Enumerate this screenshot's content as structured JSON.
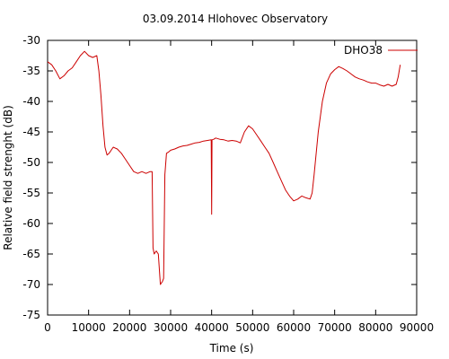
{
  "chart_data": {
    "type": "line",
    "title": "03.09.2014 Hlohovec Observatory",
    "xlabel": "Time (s)",
    "ylabel": "Relative field strenght (dB)",
    "xlim": [
      0,
      90000
    ],
    "ylim": [
      -75,
      -30
    ],
    "x_ticks": [
      0,
      10000,
      20000,
      30000,
      40000,
      50000,
      60000,
      70000,
      80000,
      90000
    ],
    "y_ticks": [
      -30,
      -35,
      -40,
      -45,
      -50,
      -55,
      -60,
      -65,
      -70,
      -75
    ],
    "grid": false,
    "legend_position": "top-right",
    "series": [
      {
        "name": "DHO38",
        "color": "#cc0000",
        "x": [
          0,
          1000,
          2000,
          3000,
          4000,
          5000,
          6000,
          7000,
          8000,
          9000,
          10000,
          11000,
          12000,
          12500,
          13000,
          13500,
          14000,
          14500,
          15000,
          15500,
          16000,
          17000,
          18000,
          19000,
          20000,
          21000,
          22000,
          23000,
          24000,
          25000,
          25500,
          25700,
          26000,
          26500,
          27000,
          27500,
          28000,
          28300,
          28600,
          29000,
          29500,
          30000,
          31000,
          32000,
          33000,
          34000,
          35000,
          36000,
          37000,
          38000,
          39000,
          39900,
          40000,
          40100,
          40500,
          41000,
          42000,
          43000,
          44000,
          45000,
          46000,
          47000,
          48000,
          49000,
          50000,
          51000,
          52000,
          53000,
          54000,
          55000,
          56000,
          57000,
          58000,
          59000,
          60000,
          61000,
          62000,
          63000,
          64000,
          64500,
          65000,
          66000,
          67000,
          68000,
          69000,
          70000,
          71000,
          72000,
          73000,
          74000,
          75000,
          76000,
          77000,
          78000,
          79000,
          80000,
          81000,
          82000,
          83000,
          84000,
          85000,
          85500,
          86000
        ],
        "y": [
          -33.5,
          -34,
          -35,
          -36.3,
          -35.8,
          -35,
          -34.5,
          -33.5,
          -32.5,
          -31.8,
          -32.5,
          -32.8,
          -32.5,
          -35,
          -39,
          -44,
          -47.5,
          -48.8,
          -48.5,
          -48,
          -47.5,
          -47.8,
          -48.5,
          -49.5,
          -50.5,
          -51.5,
          -51.8,
          -51.5,
          -51.8,
          -51.5,
          -51.5,
          -64,
          -65,
          -64.5,
          -65,
          -70,
          -69.5,
          -69,
          -52,
          -48.5,
          -48.3,
          -48,
          -47.8,
          -47.5,
          -47.3,
          -47.2,
          -47,
          -46.8,
          -46.7,
          -46.5,
          -46.4,
          -46.3,
          -58.5,
          -46.3,
          -46.2,
          -46,
          -46.2,
          -46.3,
          -46.5,
          -46.4,
          -46.5,
          -46.8,
          -45,
          -44,
          -44.5,
          -45.5,
          -46.5,
          -47.5,
          -48.5,
          -50,
          -51.5,
          -53,
          -54.5,
          -55.5,
          -56.3,
          -56,
          -55.5,
          -55.8,
          -56,
          -55,
          -52,
          -45,
          -40,
          -37,
          -35.5,
          -34.8,
          -34.3,
          -34.6,
          -35,
          -35.5,
          -36,
          -36.3,
          -36.5,
          -36.8,
          -37,
          -37,
          -37.3,
          -37.5,
          -37.2,
          -37.5,
          -37.2,
          -36,
          -34
        ]
      }
    ]
  }
}
